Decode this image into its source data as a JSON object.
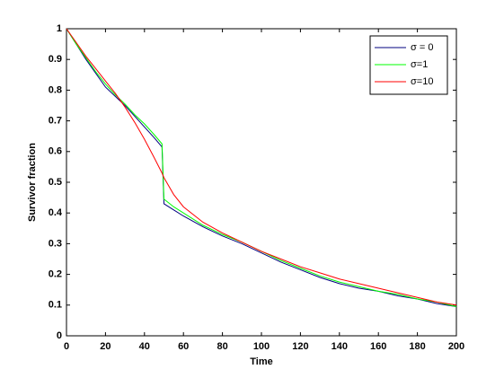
{
  "chart_data": {
    "type": "line",
    "x_label": "Time",
    "y_label": "Survivor fraction",
    "x": [
      0,
      5,
      10,
      15,
      20,
      25,
      30,
      35,
      40,
      45,
      49,
      50,
      55,
      60,
      70,
      80,
      90,
      100,
      110,
      120,
      130,
      140,
      150,
      160,
      170,
      180,
      190,
      200
    ],
    "series": [
      {
        "name": "σ = 0",
        "color": "#00007f",
        "values": [
          1,
          0.95,
          0.9,
          0.855,
          0.81,
          0.78,
          0.75,
          0.715,
          0.68,
          0.645,
          0.615,
          0.43,
          0.41,
          0.39,
          0.355,
          0.325,
          0.3,
          0.27,
          0.24,
          0.215,
          0.19,
          0.17,
          0.155,
          0.145,
          0.13,
          0.12,
          0.105,
          0.095
        ]
      },
      {
        "name": "σ=1",
        "color": "#00ff00",
        "values": [
          1,
          0.95,
          0.905,
          0.86,
          0.82,
          0.785,
          0.755,
          0.72,
          0.69,
          0.655,
          0.625,
          0.445,
          0.42,
          0.4,
          0.36,
          0.33,
          0.305,
          0.275,
          0.245,
          0.22,
          0.195,
          0.175,
          0.16,
          0.145,
          0.135,
          0.12,
          0.11,
          0.095
        ]
      },
      {
        "name": "σ=10",
        "color": "#ff0000",
        "values": [
          1,
          0.955,
          0.91,
          0.87,
          0.83,
          0.79,
          0.745,
          0.695,
          0.64,
          0.58,
          0.53,
          0.515,
          0.46,
          0.42,
          0.37,
          0.335,
          0.305,
          0.275,
          0.25,
          0.225,
          0.205,
          0.185,
          0.17,
          0.155,
          0.14,
          0.125,
          0.11,
          0.1
        ]
      }
    ],
    "xlim": [
      0,
      200
    ],
    "xticks": [
      0,
      20,
      40,
      60,
      80,
      100,
      120,
      140,
      160,
      180,
      200
    ],
    "ylim": [
      0,
      1
    ],
    "yticks": [
      0,
      0.1,
      0.2,
      0.3,
      0.4,
      0.5,
      0.6,
      0.7,
      0.8,
      0.9,
      1
    ],
    "grid": false,
    "legend_position": "upper right"
  }
}
